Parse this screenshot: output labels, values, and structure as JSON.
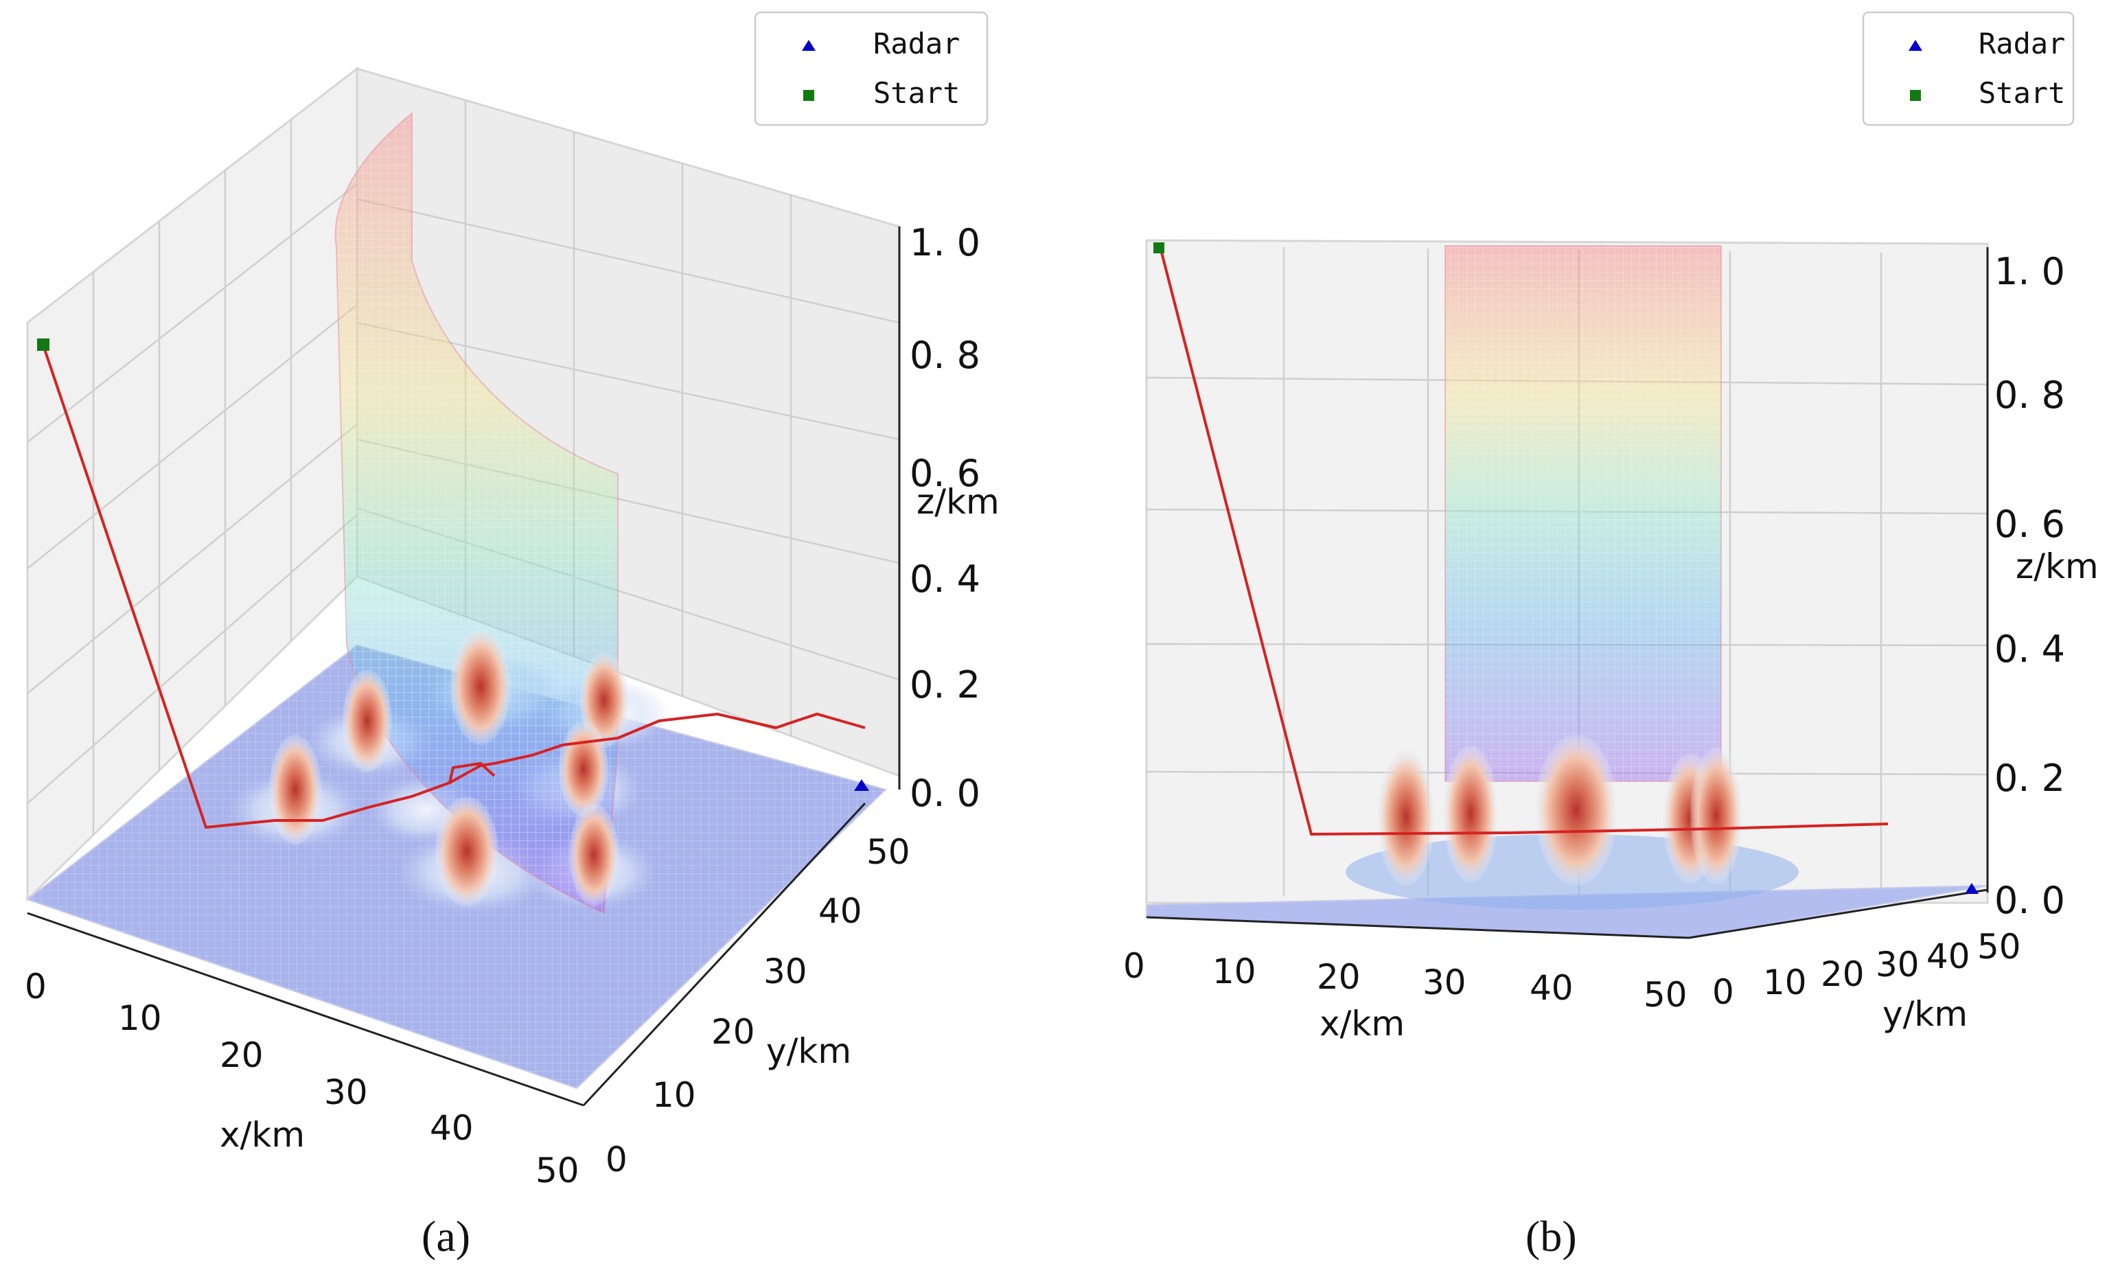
{
  "chart_data": [
    {
      "panel": "(a)",
      "type": "3d-surface-with-path",
      "xlabel": "x/km",
      "ylabel": "y/km",
      "zlabel": "z/km",
      "xlim": [
        0,
        50
      ],
      "ylim": [
        0,
        50
      ],
      "zlim": [
        0,
        1.0
      ],
      "xticks": [
        "0",
        "10",
        "20",
        "30",
        "40",
        "50"
      ],
      "yticks": [
        "0",
        "10",
        "20",
        "30",
        "40",
        "50"
      ],
      "zticks": [
        "0. 0",
        "0. 2",
        "0. 4",
        "0. 6",
        "0. 8",
        "1. 0"
      ],
      "legend": {
        "placement": "top-right",
        "entries": [
          "Radar",
          "Start"
        ]
      },
      "legend_colors": {
        "Radar": "#0000cc",
        "Start": "#117a11"
      },
      "path_color": "#d62222",
      "grid": true
    },
    {
      "panel": "(b)",
      "type": "3d-surface-with-path",
      "xlabel": "x/km",
      "ylabel": "y/km",
      "zlabel": "z/km",
      "xlim": [
        0,
        50
      ],
      "ylim": [
        0,
        50
      ],
      "zlim": [
        0,
        1.0
      ],
      "xticks": [
        "0",
        "10",
        "20",
        "30",
        "40",
        "50"
      ],
      "yticks": [
        "0",
        "10",
        "20",
        "30",
        "40",
        "50"
      ],
      "zticks": [
        "0. 0",
        "0. 2",
        "0. 4",
        "0. 6",
        "0. 8",
        "1. 0"
      ],
      "legend": {
        "placement": "top-right",
        "entries": [
          "Radar",
          "Start"
        ]
      },
      "legend_colors": {
        "Radar": "#0000cc",
        "Start": "#117a11"
      },
      "path_color": "#d62222",
      "grid": true
    }
  ]
}
